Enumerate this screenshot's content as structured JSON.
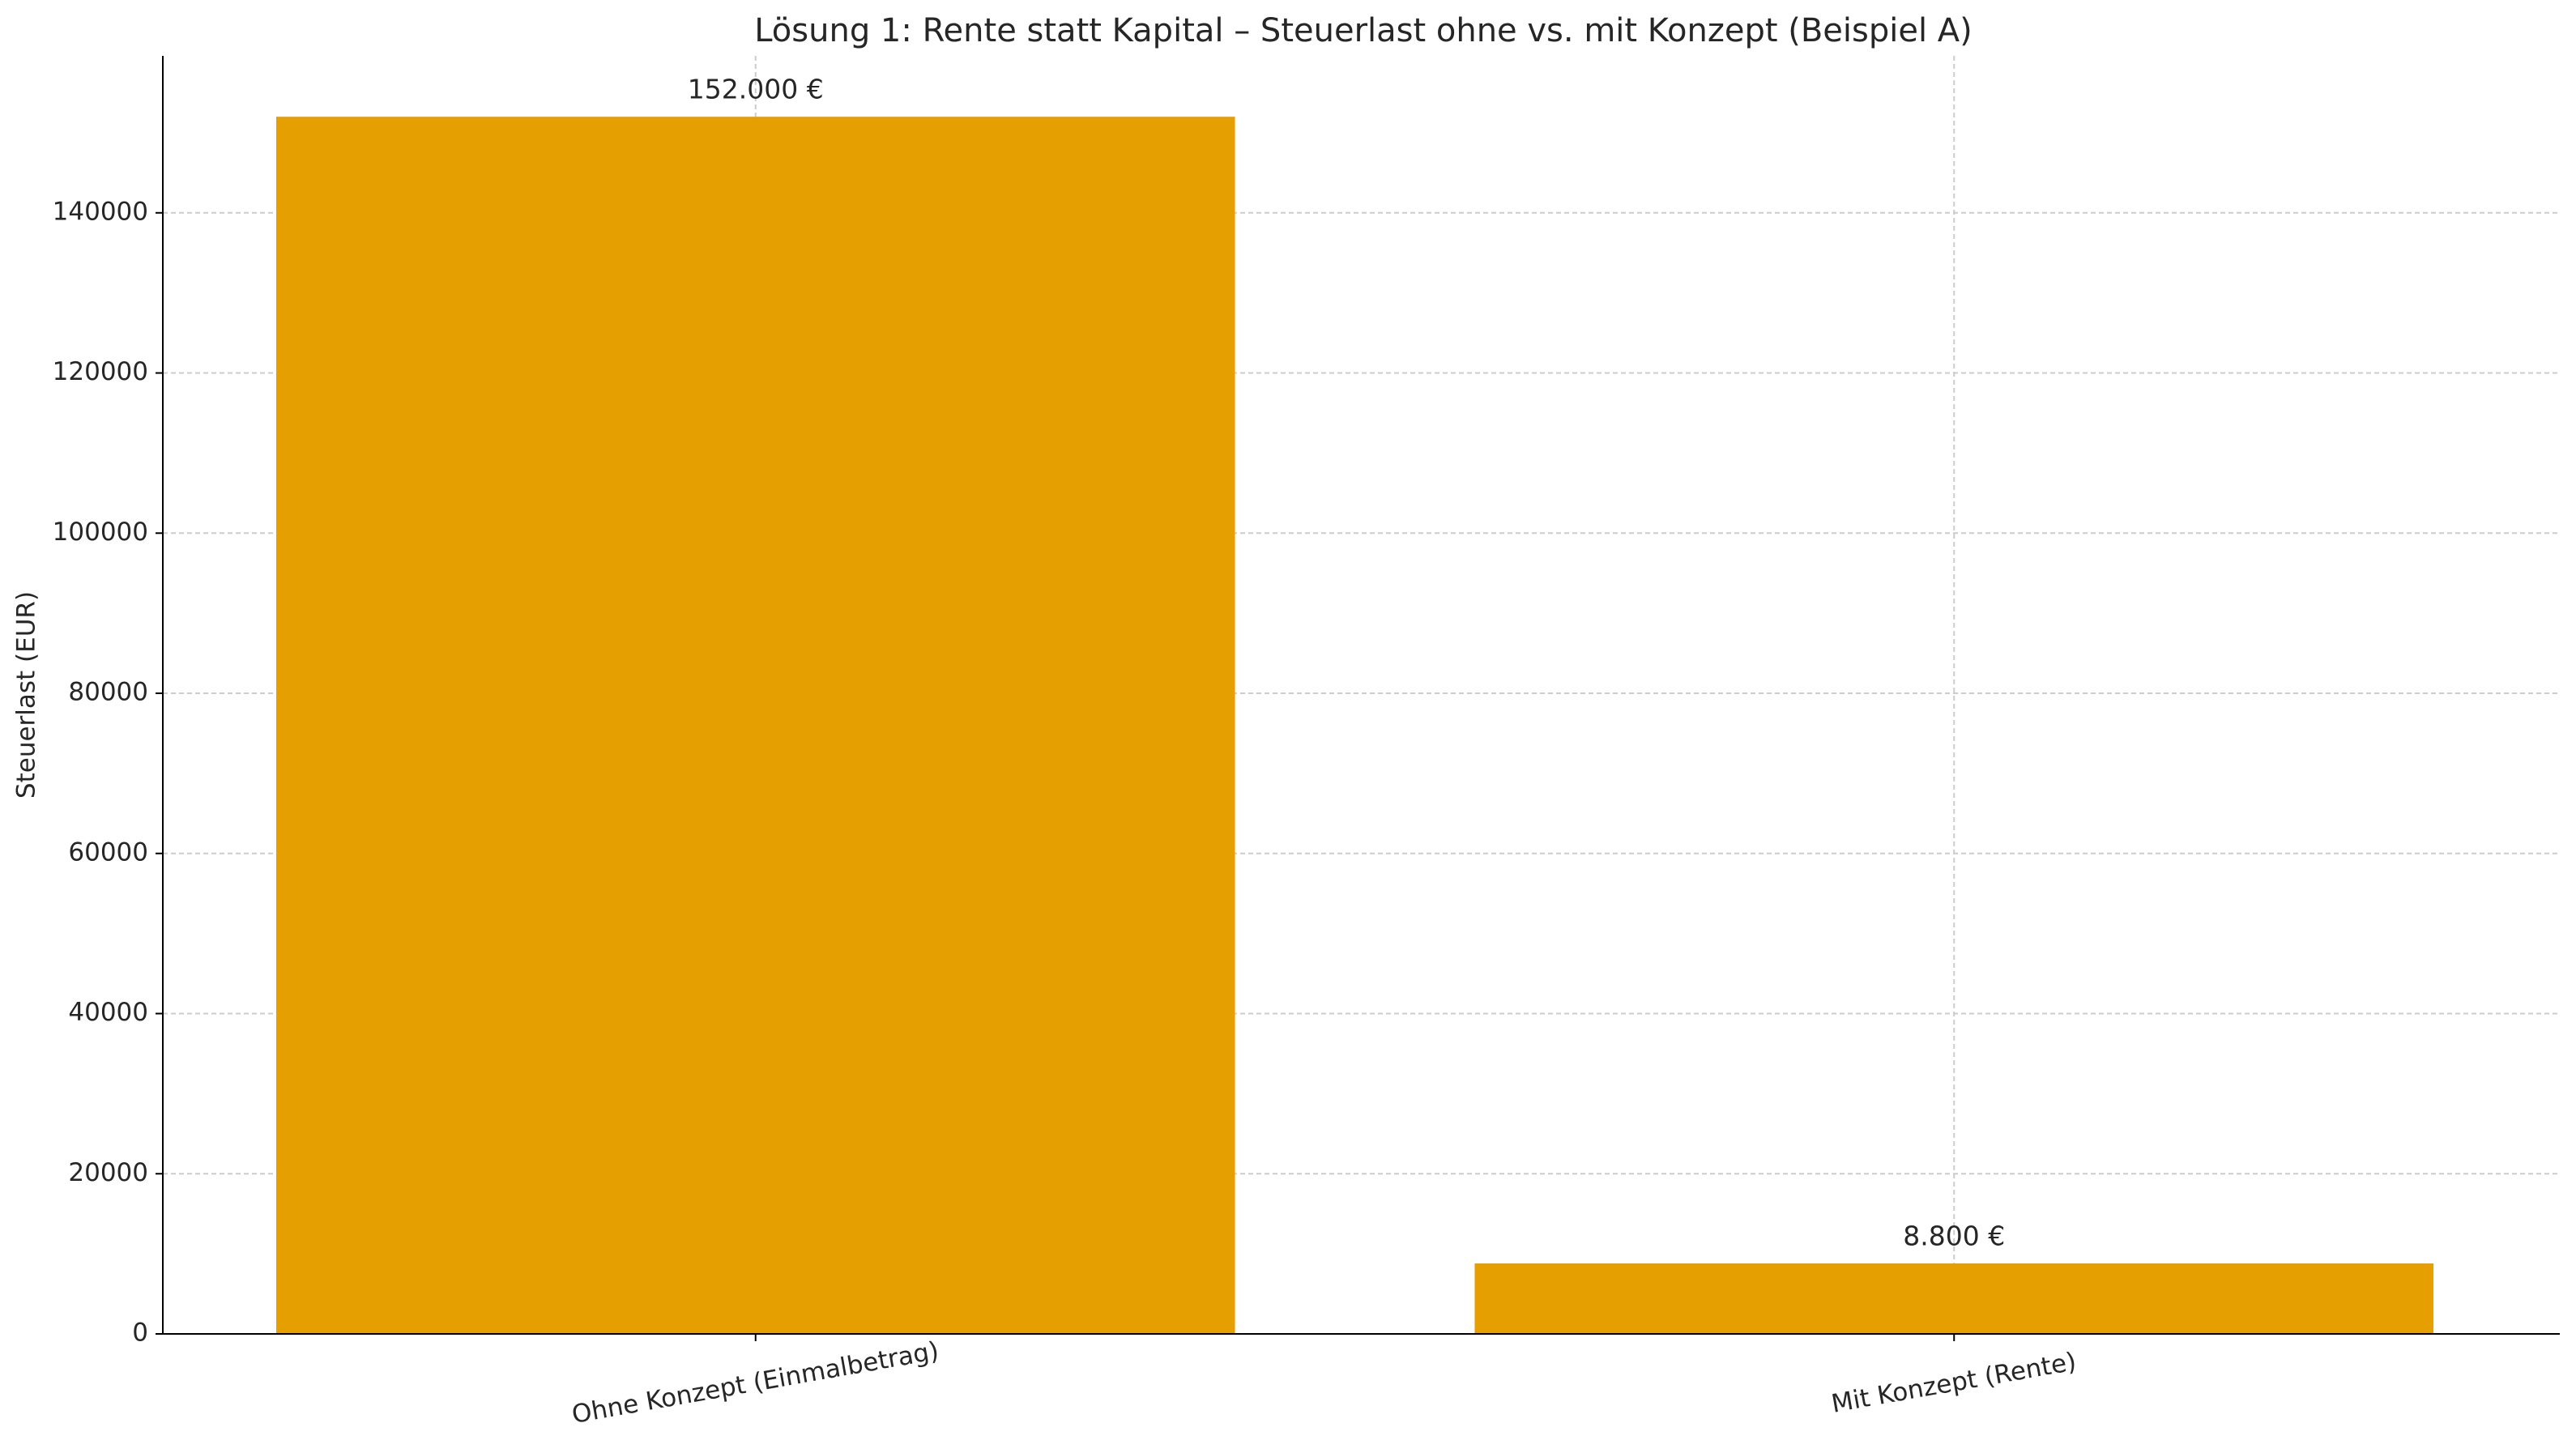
{
  "chart_data": {
    "type": "bar",
    "title": "Lösung 1: Rente statt Kapital – Steuerlast ohne vs. mit Konzept (Beispiel A)",
    "y_label": "Steuerlast (EUR)",
    "categories": [
      "Ohne Konzept (Einmalbetrag)",
      "Mit Konzept (Rente)"
    ],
    "values": [
      152000,
      8800
    ],
    "value_labels": [
      "152.000 €",
      "8.800 €"
    ],
    "color": "#e69f00",
    "ylim": [
      0,
      159600
    ],
    "yticks": [
      0,
      20000,
      40000,
      60000,
      80000,
      100000,
      120000,
      140000
    ],
    "grid": true
  }
}
